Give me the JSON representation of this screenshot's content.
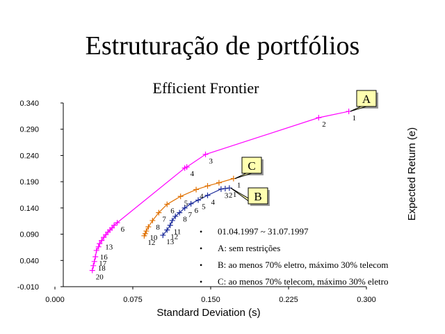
{
  "slide_title": "Estruturação de portfólios",
  "notes": [
    "01.04.1997 ~ 31.07.1997",
    "A: sem restrições",
    "B: ao menos 70% eletro, máximo 30% telecom",
    "C: ao menos 70% telecom, máximo 30% eletro"
  ],
  "chart_data": {
    "type": "line",
    "title": "Efficient Frontier",
    "x_label": "Standard Deviation (s)",
    "y_label": "Expected Return (e)",
    "xlim": [
      0,
      0.3
    ],
    "ylim": [
      -0.01,
      0.34
    ],
    "xticks": [
      {
        "value": 0,
        "label": "0.000"
      },
      {
        "value": 0.075,
        "label": "0.075"
      },
      {
        "value": 0.15,
        "label": "0.150"
      },
      {
        "value": 0.225,
        "label": "0.225"
      },
      {
        "value": 0.3,
        "label": "0.300"
      }
    ],
    "yticks": [
      {
        "value": -0.01,
        "label": "-0.010"
      },
      {
        "value": 0.04,
        "label": "0.040"
      },
      {
        "value": 0.09,
        "label": "0.090"
      },
      {
        "value": 0.14,
        "label": "0.140"
      },
      {
        "value": 0.19,
        "label": "0.190"
      },
      {
        "value": 0.24,
        "label": "0.240"
      },
      {
        "value": 0.29,
        "label": "0.290"
      },
      {
        "value": 0.34,
        "label": "0.340"
      }
    ],
    "series": [
      {
        "name": "A",
        "color": "#ff00ff",
        "x": [
          0.283,
          0.254,
          0.145,
          0.127,
          0.125,
          0.06,
          0.057,
          0.055,
          0.053,
          0.051,
          0.049,
          0.047,
          0.045,
          0.043,
          0.042,
          0.04,
          0.039,
          0.038,
          0.037,
          0.036
        ],
        "values": [
          0.324,
          0.312,
          0.242,
          0.218,
          0.216,
          0.112,
          0.107,
          0.102,
          0.098,
          0.094,
          0.089,
          0.084,
          0.078,
          0.072,
          0.066,
          0.059,
          0.047,
          0.038,
          0.03,
          0.021
        ],
        "point_labels": [
          "1",
          "2",
          "3",
          "4",
          null,
          "6",
          null,
          null,
          null,
          null,
          null,
          null,
          "13",
          null,
          null,
          "16",
          "17",
          "18",
          null,
          "20"
        ]
      },
      {
        "name": "B",
        "color": "#1a2a9a",
        "x": [
          0.168,
          0.164,
          0.16,
          0.147,
          0.138,
          0.131,
          0.125,
          0.12,
          0.116,
          0.113,
          0.111,
          0.108,
          0.104
        ],
        "values": [
          0.178,
          0.177,
          0.176,
          0.164,
          0.155,
          0.148,
          0.14,
          0.131,
          0.124,
          0.116,
          0.107,
          0.098,
          0.088
        ],
        "point_labels": [
          "1",
          "2",
          "3",
          "4",
          "5",
          "6",
          "7",
          "8",
          null,
          null,
          "11",
          "12",
          "13"
        ]
      },
      {
        "name": "C",
        "color": "#e07000",
        "x": [
          0.172,
          0.158,
          0.147,
          0.136,
          0.121,
          0.108,
          0.1,
          0.094,
          0.09,
          0.088,
          0.087,
          0.086
        ],
        "values": [
          0.196,
          0.188,
          0.182,
          0.175,
          0.162,
          0.147,
          0.131,
          0.116,
          0.104,
          0.096,
          0.091,
          0.087
        ],
        "point_labels": [
          "1",
          null,
          null,
          "4",
          "5",
          "6",
          "7",
          "8",
          null,
          "10",
          null,
          "12"
        ]
      }
    ]
  }
}
